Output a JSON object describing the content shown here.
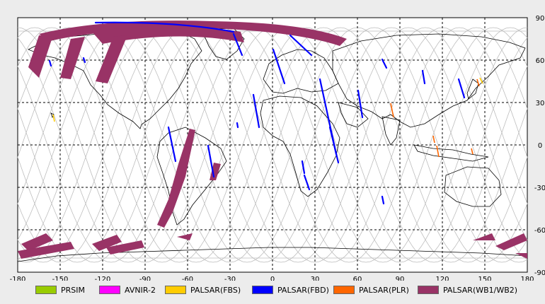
{
  "map": {
    "lon_ticks": [
      "-180",
      "-150",
      "-120",
      "-90",
      "-60",
      "-30",
      "0",
      "30",
      "60",
      "90",
      "120",
      "150",
      "180"
    ],
    "lat_ticks": [
      "90",
      "60",
      "30",
      "0",
      "-30",
      "-60",
      "-90"
    ],
    "colors": {
      "background": "#ececec",
      "plot": "#ffffff",
      "coastline": "#000000",
      "orbit": "#bdbdbd",
      "grid": "#000000"
    }
  },
  "legend": {
    "items": [
      {
        "label": "PRSIM",
        "color": "#99cc00"
      },
      {
        "label": "AVNIR-2",
        "color": "#ff00ff"
      },
      {
        "label": "PALSAR(FBS)",
        "color": "#ffcc00"
      },
      {
        "label": "PALSAR(FBD)",
        "color": "#0000ff"
      },
      {
        "label": "PALSAR(PLR)",
        "color": "#ff6600"
      },
      {
        "label": "PALSAR(WB1/WB2)",
        "color": "#993366"
      }
    ]
  }
}
